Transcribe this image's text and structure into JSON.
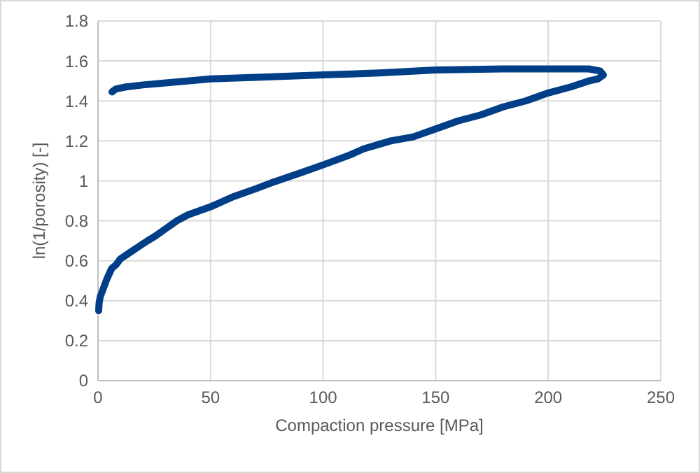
{
  "chart_data": {
    "type": "line",
    "xlabel": "Compaction pressure [MPa]",
    "ylabel": "ln(1/porosity) [-]",
    "xlim": [
      0,
      250
    ],
    "xticks": [
      0,
      50,
      100,
      150,
      200,
      250
    ],
    "ylim": [
      0,
      1.8
    ],
    "yticks": [
      0,
      0.2,
      0.4,
      0.6,
      0.8,
      1,
      1.2,
      1.4,
      1.6,
      1.8
    ],
    "grid": true,
    "line_style": "solid",
    "series": [
      {
        "color": "#003f87",
        "x": [
          0.3,
          0.5,
          1,
          2,
          3,
          4,
          6,
          8,
          10,
          14,
          18,
          22,
          25,
          30,
          35,
          40,
          50,
          60,
          70,
          77,
          90,
          100,
          112,
          118,
          130,
          140,
          150,
          160,
          170,
          180,
          190,
          200,
          210,
          218,
          222,
          224.5,
          223,
          218,
          210,
          200,
          180,
          150,
          125,
          100,
          75,
          50,
          30,
          20,
          12.4,
          8,
          6.2
        ],
        "values": [
          0.35,
          0.39,
          0.42,
          0.45,
          0.48,
          0.51,
          0.56,
          0.58,
          0.61,
          0.64,
          0.67,
          0.7,
          0.72,
          0.76,
          0.8,
          0.83,
          0.87,
          0.92,
          0.96,
          0.99,
          1.04,
          1.08,
          1.13,
          1.16,
          1.2,
          1.22,
          1.26,
          1.3,
          1.33,
          1.37,
          1.4,
          1.44,
          1.47,
          1.5,
          1.51,
          1.53,
          1.55,
          1.56,
          1.56,
          1.56,
          1.56,
          1.555,
          1.54,
          1.53,
          1.52,
          1.51,
          1.49,
          1.48,
          1.47,
          1.46,
          1.445
        ]
      }
    ]
  }
}
